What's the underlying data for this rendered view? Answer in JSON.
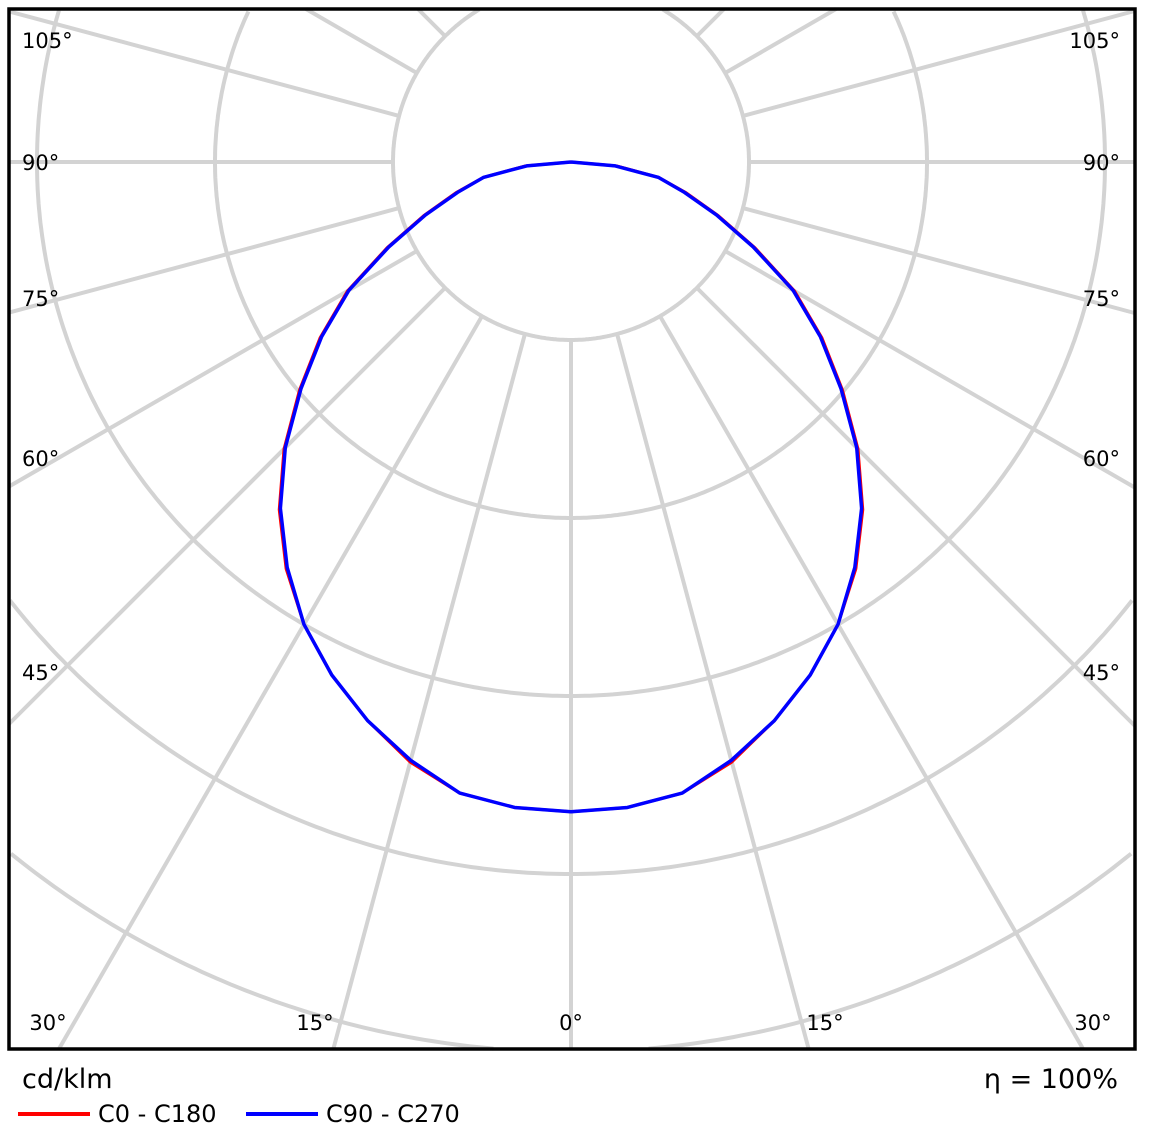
{
  "chart_data": {
    "type": "polar-line",
    "unit_label": "cd/klm",
    "efficiency_label": "η = 100%",
    "angle_labels_left": [
      "105°",
      "90°",
      "75°",
      "60°",
      "45°",
      "30°"
    ],
    "angle_labels_bottom": [
      "30°",
      "15°",
      "0°",
      "15°",
      "30°"
    ],
    "angle_labels_right": [
      "105°",
      "90°",
      "75°",
      "60°",
      "45°"
    ],
    "radial_step_deg": 15,
    "ring_step": 100,
    "grid": true,
    "legend_placement": "bottom-left",
    "angles": [
      0,
      5,
      10,
      15,
      20,
      25,
      30,
      35,
      40,
      45,
      50,
      55,
      60,
      65,
      70,
      75,
      80,
      85,
      90
    ],
    "series": [
      {
        "name": "C0 - C180",
        "color": "#ff0000",
        "values": [
          365,
          364,
          360,
          349,
          334,
          318,
          300,
          279,
          255,
          228,
          199,
          172,
          145,
          114,
          88,
          67,
          50,
          26,
          0
        ]
      },
      {
        "name": "C90 - C270",
        "color": "#0000ff",
        "values": [
          365,
          364,
          360,
          348,
          334,
          318,
          300,
          278,
          254,
          227,
          198,
          171,
          144,
          113,
          87,
          66,
          50,
          25,
          0
        ]
      }
    ]
  }
}
